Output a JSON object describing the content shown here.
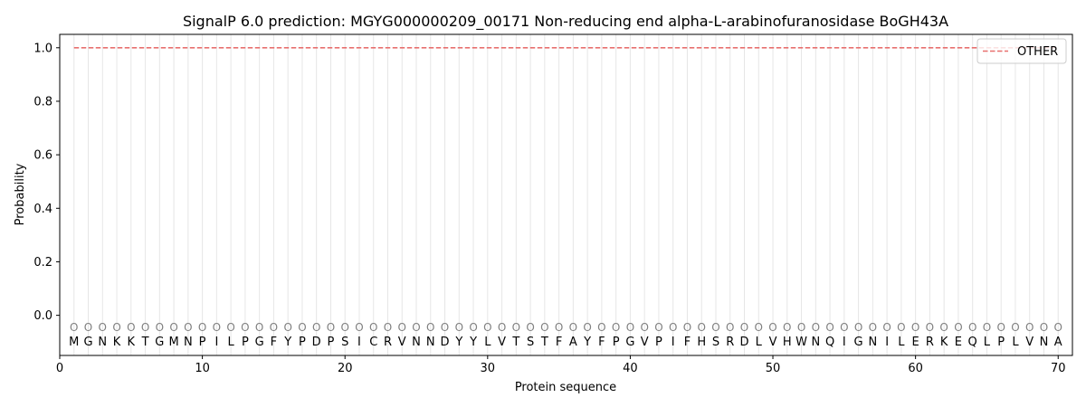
{
  "chart_data": {
    "type": "line",
    "title": "SignalP 6.0 prediction: MGYG000000209_00171 Non-reducing end alpha-L-arabinofuranosidase BoGH43A",
    "xlabel": "Protein sequence",
    "ylabel": "Probability",
    "xlim": [
      0,
      71
    ],
    "ylim": [
      -0.15,
      1.05
    ],
    "x_ticks": [
      0,
      10,
      20,
      30,
      40,
      50,
      60,
      70
    ],
    "y_ticks": [
      0.0,
      0.2,
      0.4,
      0.6,
      0.8,
      1.0
    ],
    "y_tick_labels": [
      "0.0",
      "0.2",
      "0.4",
      "0.6",
      "0.8",
      "1.0"
    ],
    "sequence": [
      "M",
      "G",
      "N",
      "K",
      "K",
      "T",
      "G",
      "M",
      "N",
      "P",
      "I",
      "L",
      "P",
      "G",
      "F",
      "Y",
      "P",
      "D",
      "P",
      "S",
      "I",
      "C",
      "R",
      "V",
      "N",
      "N",
      "D",
      "Y",
      "Y",
      "L",
      "V",
      "T",
      "S",
      "T",
      "F",
      "A",
      "Y",
      "F",
      "P",
      "G",
      "V",
      "P",
      "I",
      "F",
      "H",
      "S",
      "R",
      "D",
      "L",
      "V",
      "H",
      "W",
      "N",
      "Q",
      "I",
      "G",
      "N",
      "I",
      "L",
      "E",
      "R",
      "K",
      "E",
      "Q",
      "L",
      "P",
      "L",
      "V",
      "N",
      "A"
    ],
    "predicted_label": "O",
    "marker_y": -0.045,
    "series": [
      {
        "name": "OTHER",
        "color": "#e8706f",
        "style": "dashed",
        "x_start": 1,
        "x_end": 70,
        "value": 1.0
      }
    ],
    "legend": {
      "position": "top-right"
    },
    "grid": {
      "vertical_per_residue": true,
      "color": "#e6e6e6"
    }
  }
}
